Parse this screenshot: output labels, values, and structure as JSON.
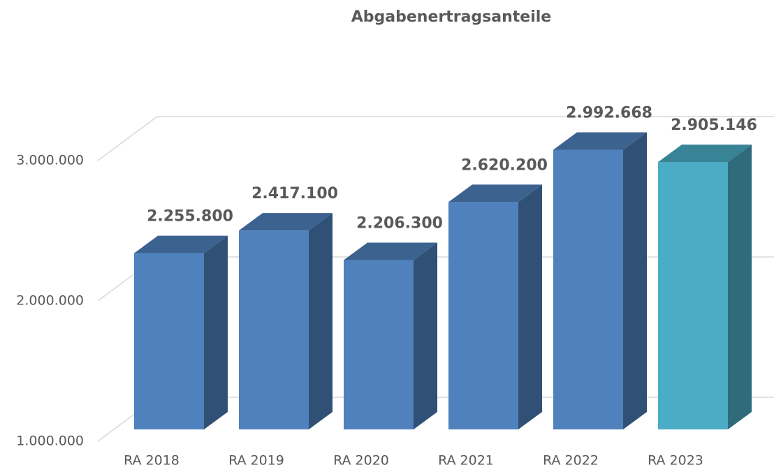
{
  "chart_data": {
    "type": "bar3d",
    "title": "Abgabenertragsanteile",
    "categories": [
      "RA 2018",
      "RA 2019",
      "RA 2020",
      "RA 2021",
      "RA 2022",
      "RA 2023"
    ],
    "values": [
      2255800,
      2417100,
      2206300,
      2620200,
      2992668,
      2905146
    ],
    "value_labels": [
      "2.255.800",
      "2.417.100",
      "2.206.300",
      "2.620.200",
      "2.992.668",
      "2.905.146"
    ],
    "colors": [
      "#4f81bd",
      "#4f81bd",
      "#4f81bd",
      "#4f81bd",
      "#4f81bd",
      "#4bacc6"
    ],
    "ylim": [
      1000000,
      3000000
    ],
    "yticks": [
      {
        "value": 1000000,
        "label": "1.000.000"
      },
      {
        "value": 2000000,
        "label": "2.000.000"
      },
      {
        "value": 3000000,
        "label": "3.000.000"
      }
    ],
    "grid": true
  }
}
